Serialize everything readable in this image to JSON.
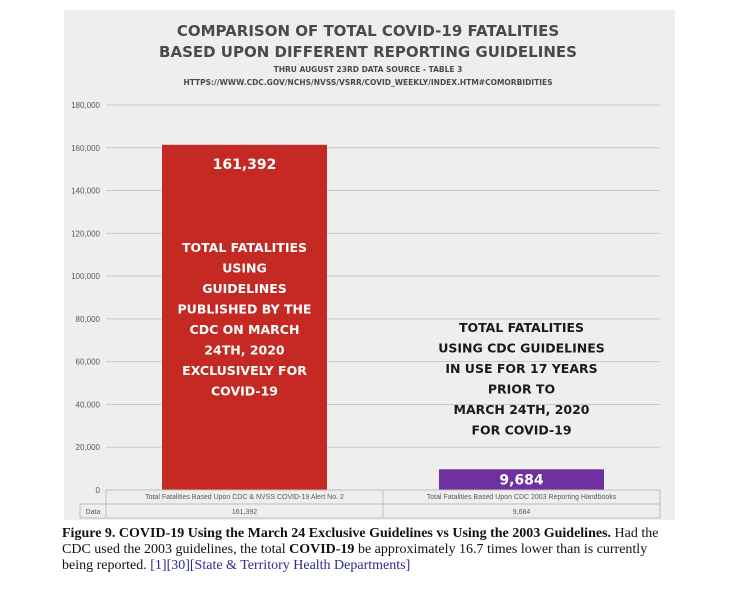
{
  "chart_data": {
    "type": "bar",
    "title_lines": [
      "COMPARISON OF TOTAL COVID-19 FATALITIES",
      "BASED UPON DIFFERENT REPORTING GUIDELINES"
    ],
    "subtitle_lines": [
      "THRU AUGUST 23RD DATA SOURCE - TABLE 3",
      "HTTPS://WWW.CDC.GOV/NCHS/NVSS/VSRR/COVID_WEEKLY/INDEX.HTM#COMORBIDITIES"
    ],
    "categories": [
      "Total Fatalities Based Upon CDC & NVSS COVID-19 Alert No. 2",
      "Total Fatalities Based Upon CDC 2003 Reporting Handbooks"
    ],
    "values": [
      161392,
      9684
    ],
    "value_labels": [
      "161,392",
      "9,684"
    ],
    "table_row_label": "Data",
    "bar_colors": [
      "#c42a23",
      "#7030a0"
    ],
    "ylim": [
      0,
      180000
    ],
    "yticks": [
      0,
      20000,
      40000,
      60000,
      80000,
      100000,
      120000,
      140000,
      160000,
      180000
    ],
    "ytick_labels": [
      "0",
      "20,000",
      "40,000",
      "60,000",
      "80,000",
      "100,000",
      "120,000",
      "140,000",
      "160,000",
      "180,000"
    ],
    "grid": true,
    "annotations": [
      [
        "TOTAL FATALITIES",
        "USING",
        "GUIDELINES",
        "PUBLISHED BY THE",
        "CDC ON MARCH",
        "24TH, 2020",
        "EXCLUSIVELY FOR",
        "COVID-19"
      ],
      [
        "TOTAL FATALITIES",
        "USING CDC GUIDELINES",
        "IN USE FOR 17 YEARS",
        "PRIOR TO",
        "MARCH 24TH, 2020",
        "FOR COVID-19"
      ]
    ]
  },
  "caption": {
    "label": "Figure 9.",
    "bold_text": "COVID-19 Using the March 24 Exclusive Guidelines vs Using the 2003 Guidelines.",
    "text_1": "Had the CDC used the 2003 guidelines, the total",
    "bold_term": "COVID-19",
    "text_2": "be approximately 16.7 times lower than is currently being reported.",
    "refs": "[1][30][State & Territory Health Departments]"
  }
}
